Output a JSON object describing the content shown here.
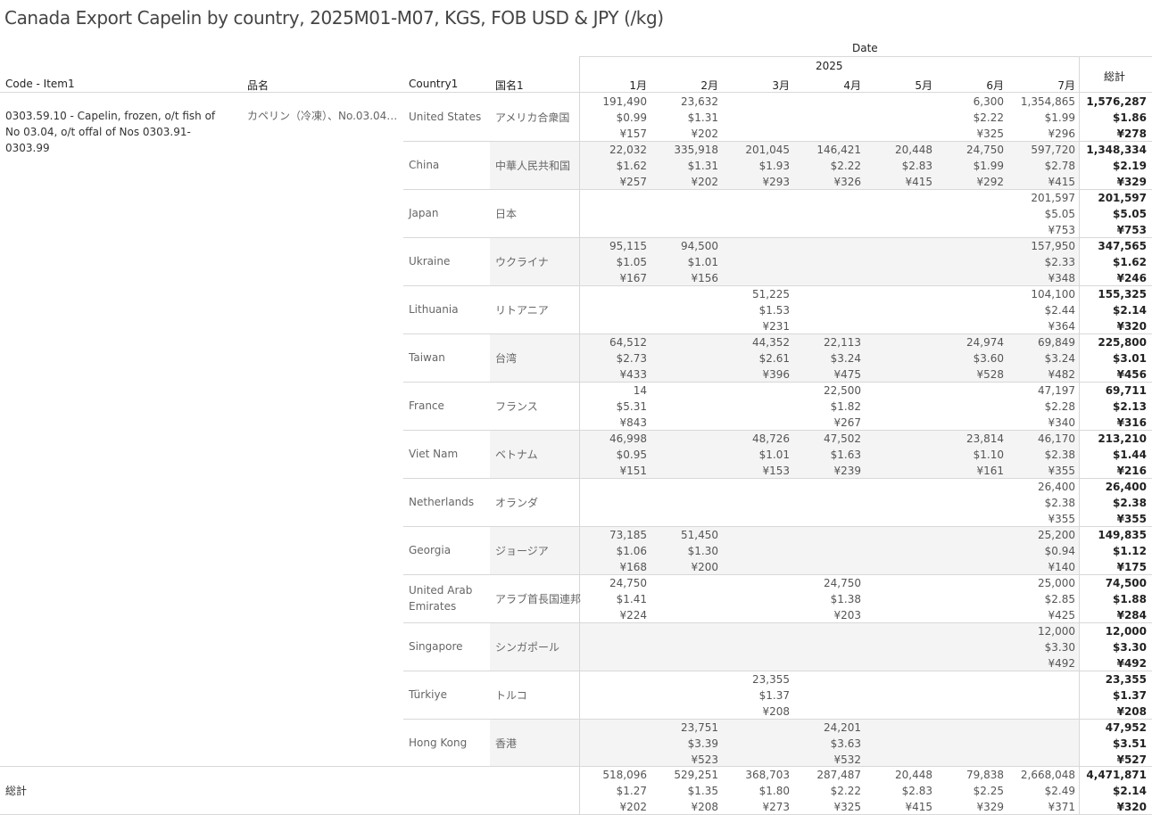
{
  "title": "Canada Export Capelin by country, 2025M01-M07, KGS, FOB USD & JPY (/kg)",
  "header": {
    "date_label": "Date",
    "year_label": "2025",
    "code_item": "Code - Item1",
    "hinmei": "品名",
    "country": "Country1",
    "kokumei": "国名1",
    "months": [
      "1月",
      "2月",
      "3月",
      "4月",
      "5月",
      "6月",
      "7月"
    ],
    "total": "総計"
  },
  "item": {
    "code": "0303.59.10 - Capelin, frozen, o/t fish of No 03.04, o/t offal of Nos 0303.91-0303.99",
    "name_jp": "カペリン（冷凍）、No.03.04の魚..."
  },
  "rows": [
    {
      "country": "United States",
      "jp": "アメリカ合衆国",
      "cells": [
        [
          "191,490",
          "$0.99",
          "¥157"
        ],
        [
          "23,632",
          "$1.31",
          "¥202"
        ],
        null,
        null,
        null,
        [
          "6,300",
          "$2.22",
          "¥325"
        ],
        [
          "1,354,865",
          "$1.99",
          "¥296"
        ]
      ],
      "total": [
        "1,576,287",
        "$1.86",
        "¥278"
      ]
    },
    {
      "country": "China",
      "jp": "中華人民共和国",
      "cells": [
        [
          "22,032",
          "$1.62",
          "¥257"
        ],
        [
          "335,918",
          "$1.31",
          "¥202"
        ],
        [
          "201,045",
          "$1.93",
          "¥293"
        ],
        [
          "146,421",
          "$2.22",
          "¥326"
        ],
        [
          "20,448",
          "$2.83",
          "¥415"
        ],
        [
          "24,750",
          "$1.99",
          "¥292"
        ],
        [
          "597,720",
          "$2.78",
          "¥415"
        ]
      ],
      "total": [
        "1,348,334",
        "$2.19",
        "¥329"
      ]
    },
    {
      "country": "Japan",
      "jp": "日本",
      "cells": [
        null,
        null,
        null,
        null,
        null,
        null,
        [
          "201,597",
          "$5.05",
          "¥753"
        ]
      ],
      "total": [
        "201,597",
        "$5.05",
        "¥753"
      ]
    },
    {
      "country": "Ukraine",
      "jp": "ウクライナ",
      "cells": [
        [
          "95,115",
          "$1.05",
          "¥167"
        ],
        [
          "94,500",
          "$1.01",
          "¥156"
        ],
        null,
        null,
        null,
        null,
        [
          "157,950",
          "$2.33",
          "¥348"
        ]
      ],
      "total": [
        "347,565",
        "$1.62",
        "¥246"
      ]
    },
    {
      "country": "Lithuania",
      "jp": "リトアニア",
      "cells": [
        null,
        null,
        [
          "51,225",
          "$1.53",
          "¥231"
        ],
        null,
        null,
        null,
        [
          "104,100",
          "$2.44",
          "¥364"
        ]
      ],
      "total": [
        "155,325",
        "$2.14",
        "¥320"
      ]
    },
    {
      "country": "Taiwan",
      "jp": "台湾",
      "cells": [
        [
          "64,512",
          "$2.73",
          "¥433"
        ],
        null,
        [
          "44,352",
          "$2.61",
          "¥396"
        ],
        [
          "22,113",
          "$3.24",
          "¥475"
        ],
        null,
        [
          "24,974",
          "$3.60",
          "¥528"
        ],
        [
          "69,849",
          "$3.24",
          "¥482"
        ]
      ],
      "total": [
        "225,800",
        "$3.01",
        "¥456"
      ]
    },
    {
      "country": "France",
      "jp": "フランス",
      "cells": [
        [
          "14",
          "$5.31",
          "¥843"
        ],
        null,
        null,
        [
          "22,500",
          "$1.82",
          "¥267"
        ],
        null,
        null,
        [
          "47,197",
          "$2.28",
          "¥340"
        ]
      ],
      "total": [
        "69,711",
        "$2.13",
        "¥316"
      ]
    },
    {
      "country": "Viet Nam",
      "jp": "ベトナム",
      "cells": [
        [
          "46,998",
          "$0.95",
          "¥151"
        ],
        null,
        [
          "48,726",
          "$1.01",
          "¥153"
        ],
        [
          "47,502",
          "$1.63",
          "¥239"
        ],
        null,
        [
          "23,814",
          "$1.10",
          "¥161"
        ],
        [
          "46,170",
          "$2.38",
          "¥355"
        ]
      ],
      "total": [
        "213,210",
        "$1.44",
        "¥216"
      ]
    },
    {
      "country": "Netherlands",
      "jp": "オランダ",
      "cells": [
        null,
        null,
        null,
        null,
        null,
        null,
        [
          "26,400",
          "$2.38",
          "¥355"
        ]
      ],
      "total": [
        "26,400",
        "$2.38",
        "¥355"
      ]
    },
    {
      "country": "Georgia",
      "jp": "ジョージア",
      "cells": [
        [
          "73,185",
          "$1.06",
          "¥168"
        ],
        [
          "51,450",
          "$1.30",
          "¥200"
        ],
        null,
        null,
        null,
        null,
        [
          "25,200",
          "$0.94",
          "¥140"
        ]
      ],
      "total": [
        "149,835",
        "$1.12",
        "¥175"
      ]
    },
    {
      "country": "United Arab Emirates",
      "jp": "アラブ首長国連邦",
      "cells": [
        [
          "24,750",
          "$1.41",
          "¥224"
        ],
        null,
        null,
        [
          "24,750",
          "$1.38",
          "¥203"
        ],
        null,
        null,
        [
          "25,000",
          "$2.85",
          "¥425"
        ]
      ],
      "total": [
        "74,500",
        "$1.88",
        "¥284"
      ]
    },
    {
      "country": "Singapore",
      "jp": "シンガポール",
      "cells": [
        null,
        null,
        null,
        null,
        null,
        null,
        [
          "12,000",
          "$3.30",
          "¥492"
        ]
      ],
      "total": [
        "12,000",
        "$3.30",
        "¥492"
      ]
    },
    {
      "country": "Türkiye",
      "jp": "トルコ",
      "cells": [
        null,
        null,
        [
          "23,355",
          "$1.37",
          "¥208"
        ],
        null,
        null,
        null,
        null
      ],
      "total": [
        "23,355",
        "$1.37",
        "¥208"
      ]
    },
    {
      "country": "Hong Kong",
      "jp": "香港",
      "cells": [
        null,
        [
          "23,751",
          "$3.39",
          "¥523"
        ],
        null,
        [
          "24,201",
          "$3.63",
          "¥532"
        ],
        null,
        null,
        null
      ],
      "total": [
        "47,952",
        "$3.51",
        "¥527"
      ]
    }
  ],
  "grand_total": {
    "label": "総計",
    "cells": [
      [
        "518,096",
        "$1.27",
        "¥202"
      ],
      [
        "529,251",
        "$1.35",
        "¥208"
      ],
      [
        "368,703",
        "$1.80",
        "¥273"
      ],
      [
        "287,487",
        "$2.22",
        "¥325"
      ],
      [
        "20,448",
        "$2.83",
        "¥415"
      ],
      [
        "79,838",
        "$2.25",
        "¥329"
      ],
      [
        "2,668,048",
        "$2.49",
        "¥371"
      ]
    ],
    "total": [
      "4,471,871",
      "$2.14",
      "¥320"
    ]
  }
}
